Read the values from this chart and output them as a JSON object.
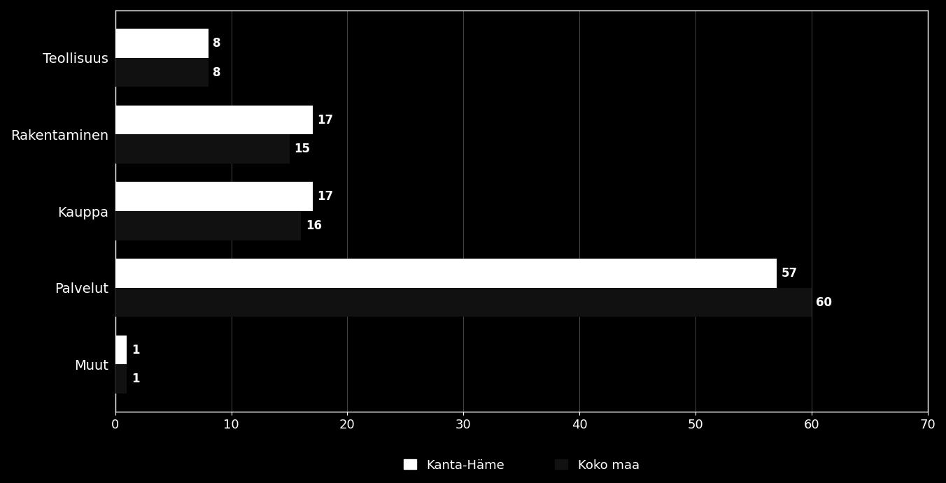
{
  "categories": [
    "Teollisuus",
    "Rakentaminen",
    "Kauppa",
    "Palvelut",
    "Muut"
  ],
  "kanta_hame": [
    8,
    17,
    17,
    57,
    1
  ],
  "koko_maa": [
    8,
    15,
    16,
    60,
    1
  ],
  "bar_color_kanta_hame": "#ffffff",
  "bar_color_koko_maa": "#111111",
  "background_color": "#000000",
  "text_color": "#ffffff",
  "legend_label_1": "Kanta-Häme",
  "legend_label_2": "Koko maa",
  "xlim": [
    0,
    70
  ],
  "xticks": [
    0,
    10,
    20,
    30,
    40,
    50,
    60,
    70
  ],
  "bar_height": 0.38,
  "label_fontsize": 14,
  "tick_fontsize": 13,
  "legend_fontsize": 13,
  "value_fontsize": 12
}
